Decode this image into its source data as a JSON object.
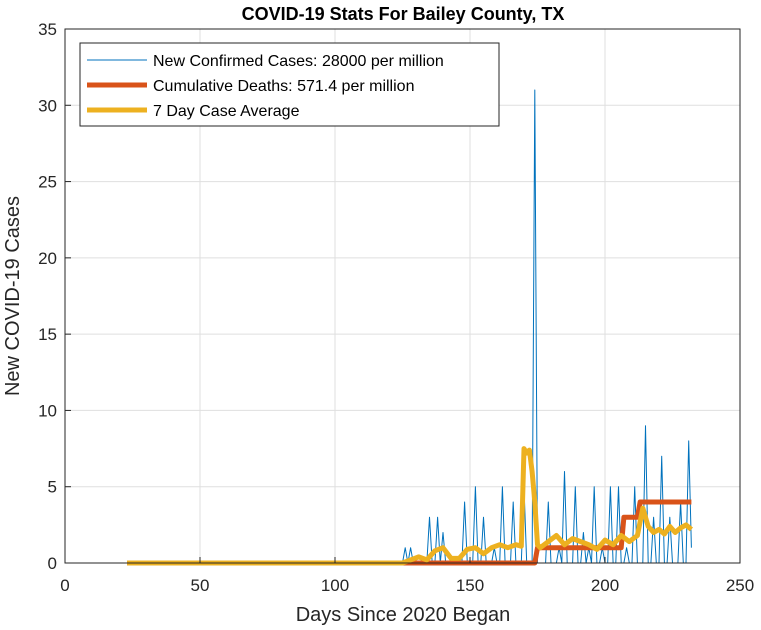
{
  "chart_data": {
    "type": "line",
    "title": "COVID-19 Stats For Bailey County, TX",
    "xlabel": "Days Since 2020 Began",
    "ylabel": "New COVID-19 Cases",
    "xlim": [
      0,
      250
    ],
    "ylim": [
      0,
      35
    ],
    "xticks": [
      0,
      50,
      100,
      150,
      200,
      250
    ],
    "yticks": [
      0,
      5,
      10,
      15,
      20,
      25,
      30,
      35
    ],
    "grid": true,
    "legend_position": "top-left",
    "series": [
      {
        "name": "New Confirmed Cases: 28000 per million",
        "color": "#0072BD",
        "x": [
          23,
          125,
          126,
          127,
          128,
          129,
          130,
          131,
          132,
          133,
          134,
          135,
          136,
          137,
          138,
          139,
          140,
          141,
          142,
          143,
          144,
          145,
          146,
          147,
          148,
          149,
          150,
          151,
          152,
          153,
          154,
          155,
          156,
          157,
          158,
          159,
          160,
          161,
          162,
          163,
          164,
          165,
          166,
          167,
          168,
          169,
          170,
          171,
          172,
          173,
          174,
          175,
          176,
          177,
          178,
          179,
          180,
          181,
          182,
          183,
          184,
          185,
          186,
          187,
          188,
          189,
          190,
          191,
          192,
          193,
          194,
          195,
          196,
          197,
          198,
          199,
          200,
          201,
          202,
          203,
          204,
          205,
          206,
          207,
          208,
          209,
          210,
          211,
          212,
          213,
          214,
          215,
          216,
          217,
          218,
          219,
          220,
          221,
          222,
          223,
          224,
          225,
          226,
          227,
          228,
          229,
          230,
          231,
          232
        ],
        "values": [
          0,
          0,
          1,
          0,
          1,
          0,
          0,
          0,
          0,
          0,
          0,
          3,
          0,
          0,
          3,
          0,
          2,
          0,
          0,
          0,
          0,
          0,
          0,
          0,
          4,
          0,
          0,
          0,
          5,
          0,
          0,
          3,
          0,
          0,
          0,
          1,
          0,
          0,
          5,
          0,
          0,
          0,
          4,
          0,
          0,
          0,
          5,
          0,
          0,
          0,
          31,
          0,
          0,
          0,
          0,
          4,
          0,
          0,
          0,
          1,
          0,
          6,
          0,
          0,
          0,
          5,
          0,
          0,
          2,
          0,
          1,
          0,
          5,
          0,
          0,
          1,
          0,
          0,
          5,
          0,
          0,
          5,
          0,
          0,
          1,
          0,
          0,
          5,
          0,
          0,
          0,
          9,
          0,
          0,
          3,
          0,
          0,
          7,
          0,
          0,
          3,
          0,
          0,
          0,
          4,
          0,
          0,
          8,
          1
        ]
      },
      {
        "name": "Cumulative Deaths: 571.4 per million",
        "color": "#D95319",
        "x": [
          23,
          174,
          175,
          176,
          195,
          196,
          206,
          207,
          212,
          213,
          232
        ],
        "values": [
          0,
          0,
          1,
          1,
          1,
          1,
          1,
          3,
          3,
          4,
          4
        ]
      },
      {
        "name": "7 Day Case Average",
        "color": "#EDB120",
        "x": [
          23,
          125,
          128,
          131,
          134,
          137,
          140,
          143,
          146,
          149,
          152,
          155,
          158,
          161,
          164,
          167,
          169,
          170,
          171,
          172,
          173,
          174,
          175,
          176,
          179,
          182,
          185,
          188,
          191,
          194,
          197,
          200,
          203,
          206,
          209,
          212,
          214,
          216,
          218,
          220,
          222,
          224,
          226,
          228,
          230,
          232
        ],
        "values": [
          0,
          0,
          0.2,
          0.4,
          0.2,
          0.8,
          1.0,
          0.3,
          0.3,
          0.9,
          1.0,
          0.6,
          1.0,
          1.2,
          1.0,
          1.2,
          1.1,
          7.5,
          7.2,
          7.4,
          6.0,
          4.0,
          1.2,
          1.0,
          1.4,
          1.8,
          1.2,
          1.6,
          1.4,
          1.2,
          0.9,
          1.5,
          1.2,
          1.8,
          1.4,
          1.8,
          3.6,
          2.4,
          2.0,
          2.2,
          1.9,
          2.4,
          2.0,
          2.3,
          2.5,
          2.2
        ]
      }
    ]
  }
}
